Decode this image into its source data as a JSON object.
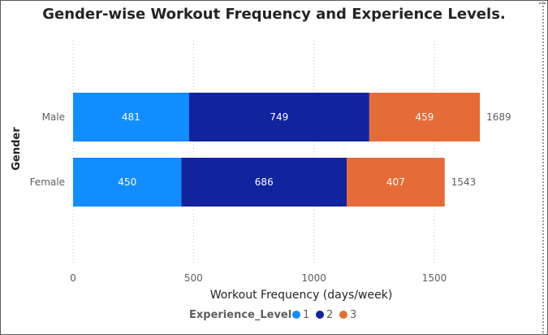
{
  "chart_data": {
    "type": "bar",
    "orientation": "horizontal",
    "stacked": true,
    "title": "Gender-wise Workout Frequency and Experience Levels.",
    "xlabel": "Workout Frequency (days/week)",
    "ylabel": "Gender",
    "categories": [
      "Male",
      "Female"
    ],
    "series": [
      {
        "name": "1",
        "values": [
          481,
          450
        ],
        "color": "#118DFF"
      },
      {
        "name": "2",
        "values": [
          749,
          686
        ],
        "color": "#12239E"
      },
      {
        "name": "3",
        "values": [
          459,
          407
        ],
        "color": "#E66C37"
      }
    ],
    "totals": [
      1689,
      1543
    ],
    "xlim": [
      0,
      1800
    ],
    "xticks": [
      0,
      500,
      1000,
      1500
    ],
    "xtick_labels": [
      "0",
      "500",
      "1000",
      "1500"
    ],
    "grid": true,
    "legend": {
      "title": "Experience_Level",
      "position": "bottom"
    }
  }
}
